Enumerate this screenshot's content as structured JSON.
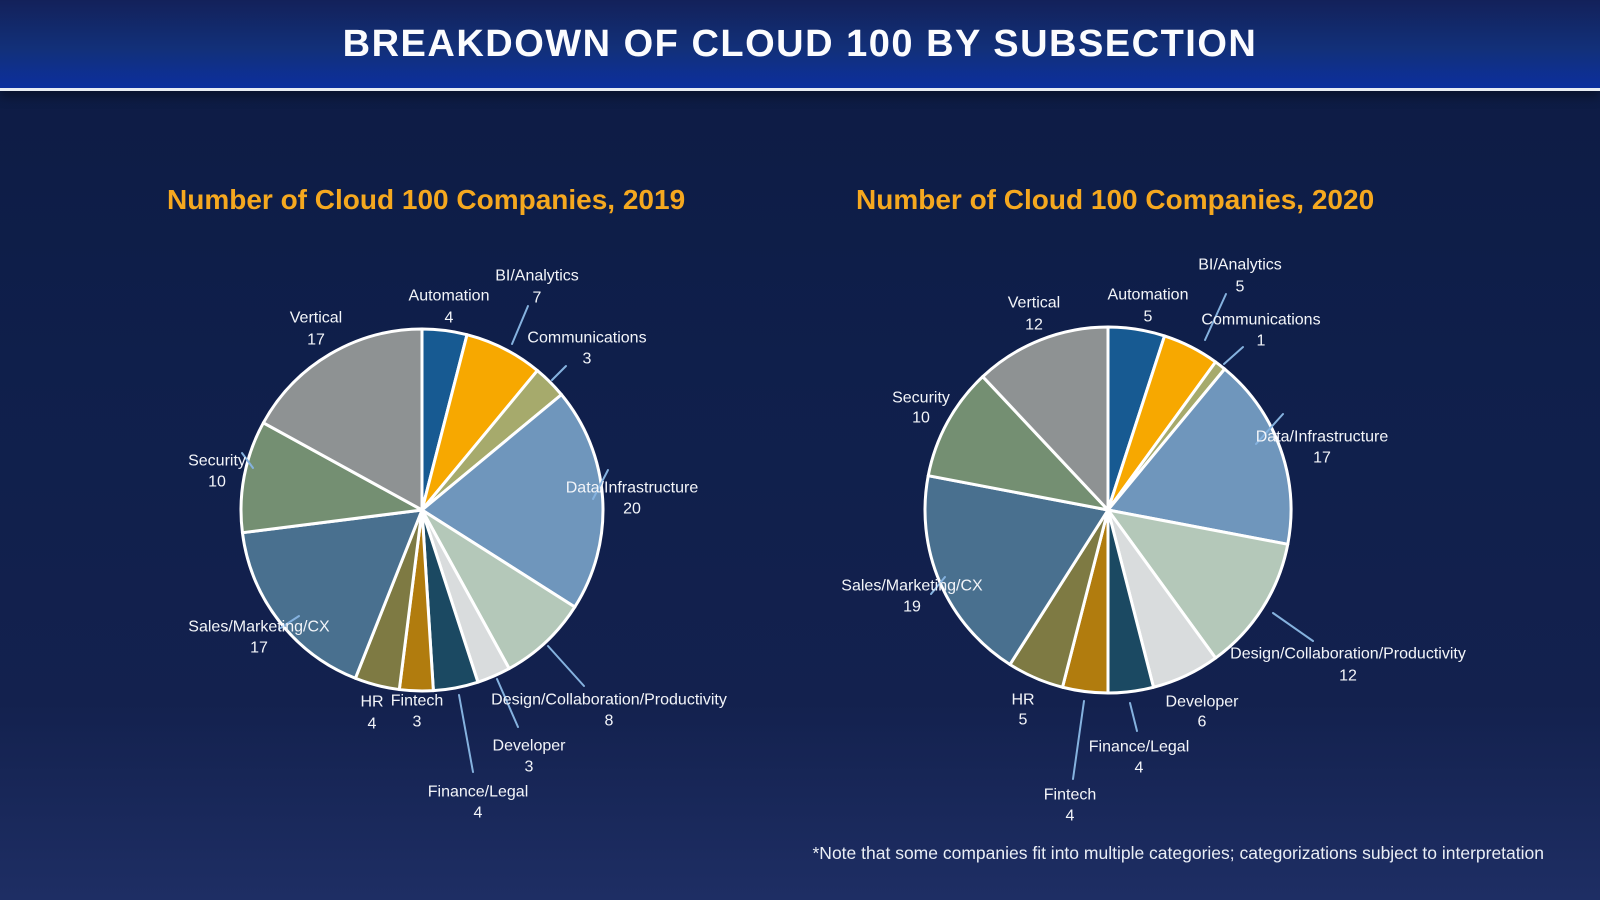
{
  "header": {
    "title": "BREAKDOWN OF CLOUD 100 BY SUBSECTION"
  },
  "footnote": {
    "text": "*Note that some companies fit into multiple categories; categorizations subject to interpretation"
  },
  "colors": {
    "background": "#0F1F4B",
    "header_gradient_top": "#13215A",
    "header_gradient_bottom": "#0C2F9E",
    "header_separator": "#E8ECF4",
    "title_accent": "#F5A81F",
    "label_text": "#F3F5F9",
    "leader_line": "#85B2DF",
    "slice_border": "#FFFFFF"
  },
  "palette": {
    "Automation": "#175A92",
    "BI/Analytics": "#F7A800",
    "Communications": "#A6AA6C",
    "Data/Infrastructure": "#6F96BC",
    "Design/Collaboration/Productivity": "#B4C8B9",
    "Developer": "#D9DCDD",
    "Finance/Legal": "#1B4962",
    "Fintech": "#B17C0E",
    "HR": "#7E7A43",
    "Sales/Marketing/CX": "#49708F",
    "Security": "#748F72",
    "Vertical": "#8E9293"
  },
  "chart_data": [
    {
      "type": "pie",
      "year": "2019",
      "title": "Number of Cloud 100 Companies, 2019",
      "categories": [
        "Automation",
        "BI/Analytics",
        "Communications",
        "Data/Infrastructure",
        "Design/Collaboration/Productivity",
        "Developer",
        "Finance/Legal",
        "Fintech",
        "HR",
        "Sales/Marketing/CX",
        "Security",
        "Vertical"
      ],
      "values": [
        4,
        7,
        3,
        20,
        8,
        3,
        4,
        3,
        4,
        17,
        10,
        17
      ],
      "total": 100,
      "start_angle_deg": 0,
      "direction": "clockwise",
      "labels_shown": "category name with value below"
    },
    {
      "type": "pie",
      "year": "2020",
      "title": "Number of Cloud 100 Companies, 2020",
      "categories": [
        "Automation",
        "BI/Analytics",
        "Communications",
        "Data/Infrastructure",
        "Design/Collaboration/Productivity",
        "Developer",
        "Finance/Legal",
        "Fintech",
        "HR",
        "Sales/Marketing/CX",
        "Security",
        "Vertical"
      ],
      "values": [
        5,
        5,
        1,
        17,
        12,
        6,
        4,
        4,
        5,
        19,
        10,
        12
      ],
      "total": 100,
      "start_angle_deg": 0,
      "direction": "clockwise",
      "labels_shown": "category name with value below"
    }
  ]
}
